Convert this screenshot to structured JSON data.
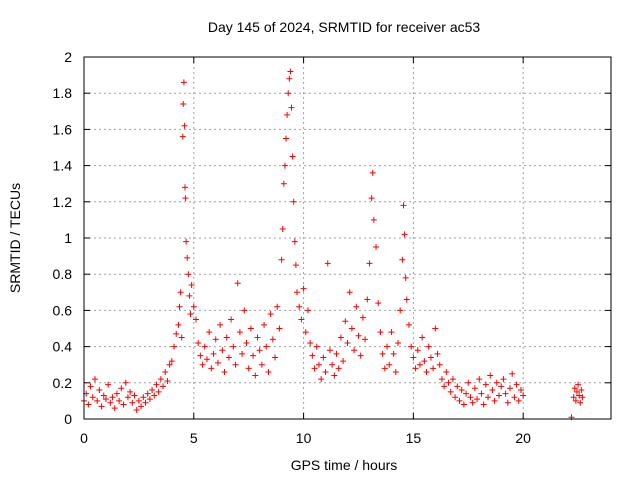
{
  "chart_data": {
    "type": "scatter",
    "title": "Day 145 of 2024, SRMTID for receiver ac53",
    "xlabel": "GPS time / hours",
    "ylabel": "SRMTID / TECUs",
    "xlim": [
      0,
      24
    ],
    "ylim": [
      0,
      2
    ],
    "xticks": [
      0,
      5,
      10,
      15,
      20
    ],
    "xtick_labels": [
      "0",
      "5",
      "10",
      "15",
      "20"
    ],
    "yticks": [
      0,
      0.2,
      0.4,
      0.6,
      0.8,
      1,
      1.2,
      1.4,
      1.6,
      1.8,
      2
    ],
    "ytick_labels": [
      "0",
      "0.2",
      "0.4",
      "0.6",
      "0.8",
      "1",
      "1.2",
      "1.4",
      "1.6",
      "1.8",
      "2"
    ],
    "grid": true,
    "marker": "+",
    "color": "#ff0000",
    "series": [
      {
        "name": "SRMTID",
        "points": [
          [
            0.0,
            0.1
          ],
          [
            0.1,
            0.14
          ],
          [
            0.2,
            0.08
          ],
          [
            0.3,
            0.18
          ],
          [
            0.4,
            0.12
          ],
          [
            0.5,
            0.22
          ],
          [
            0.6,
            0.1
          ],
          [
            0.7,
            0.16
          ],
          [
            0.8,
            0.07
          ],
          [
            0.9,
            0.13
          ],
          [
            1.0,
            0.11
          ],
          [
            1.1,
            0.19
          ],
          [
            1.2,
            0.09
          ],
          [
            1.3,
            0.12
          ],
          [
            1.4,
            0.06
          ],
          [
            1.5,
            0.14
          ],
          [
            1.6,
            0.1
          ],
          [
            1.7,
            0.17
          ],
          [
            1.8,
            0.08
          ],
          [
            1.9,
            0.2
          ],
          [
            2.0,
            0.12
          ],
          [
            2.1,
            0.15
          ],
          [
            2.2,
            0.09
          ],
          [
            2.3,
            0.13
          ],
          [
            2.4,
            0.05
          ],
          [
            2.5,
            0.1
          ],
          [
            2.6,
            0.07
          ],
          [
            2.7,
            0.12
          ],
          [
            2.8,
            0.09
          ],
          [
            2.9,
            0.14
          ],
          [
            3.0,
            0.11
          ],
          [
            3.1,
            0.16
          ],
          [
            3.2,
            0.13
          ],
          [
            3.3,
            0.19
          ],
          [
            3.4,
            0.15
          ],
          [
            3.5,
            0.22
          ],
          [
            3.6,
            0.18
          ],
          [
            3.7,
            0.26
          ],
          [
            3.8,
            0.21
          ],
          [
            3.9,
            0.3
          ],
          [
            4.0,
            0.32
          ],
          [
            4.1,
            0.4
          ],
          [
            4.2,
            0.47
          ],
          [
            4.3,
            0.52
          ],
          [
            4.35,
            0.62
          ],
          [
            4.4,
            0.7
          ],
          [
            4.45,
            0.45
          ],
          [
            4.5,
            1.56
          ],
          [
            4.52,
            1.74
          ],
          [
            4.55,
            1.86
          ],
          [
            4.58,
            1.62
          ],
          [
            4.6,
            1.28
          ],
          [
            4.62,
            1.22
          ],
          [
            4.65,
            0.98
          ],
          [
            4.7,
            0.89
          ],
          [
            4.75,
            0.8
          ],
          [
            4.8,
            0.68
          ],
          [
            4.85,
            0.58
          ],
          [
            4.9,
            0.74
          ],
          [
            5.0,
            0.62
          ],
          [
            5.1,
            0.55
          ],
          [
            5.2,
            0.42
          ],
          [
            5.3,
            0.35
          ],
          [
            5.4,
            0.3
          ],
          [
            5.5,
            0.4
          ],
          [
            5.6,
            0.33
          ],
          [
            5.7,
            0.48
          ],
          [
            5.8,
            0.28
          ],
          [
            5.9,
            0.36
          ],
          [
            6.0,
            0.44
          ],
          [
            6.1,
            0.31
          ],
          [
            6.2,
            0.52
          ],
          [
            6.3,
            0.38
          ],
          [
            6.4,
            0.26
          ],
          [
            6.5,
            0.45
          ],
          [
            6.6,
            0.34
          ],
          [
            6.7,
            0.55
          ],
          [
            6.8,
            0.4
          ],
          [
            6.9,
            0.3
          ],
          [
            7.0,
            0.75
          ],
          [
            7.1,
            0.48
          ],
          [
            7.2,
            0.36
          ],
          [
            7.3,
            0.6
          ],
          [
            7.4,
            0.42
          ],
          [
            7.5,
            0.28
          ],
          [
            7.6,
            0.5
          ],
          [
            7.7,
            0.35
          ],
          [
            7.8,
            0.24
          ],
          [
            7.9,
            0.45
          ],
          [
            8.0,
            0.38
          ],
          [
            8.1,
            0.3
          ],
          [
            8.2,
            0.52
          ],
          [
            8.3,
            0.4
          ],
          [
            8.4,
            0.26
          ],
          [
            8.5,
            0.58
          ],
          [
            8.6,
            0.44
          ],
          [
            8.7,
            0.34
          ],
          [
            8.8,
            0.62
          ],
          [
            8.9,
            0.5
          ],
          [
            9.0,
            0.88
          ],
          [
            9.05,
            1.05
          ],
          [
            9.1,
            1.3
          ],
          [
            9.15,
            1.4
          ],
          [
            9.2,
            1.55
          ],
          [
            9.25,
            1.68
          ],
          [
            9.3,
            1.8
          ],
          [
            9.35,
            1.88
          ],
          [
            9.4,
            1.92
          ],
          [
            9.45,
            1.72
          ],
          [
            9.5,
            1.45
          ],
          [
            9.55,
            1.2
          ],
          [
            9.6,
            0.98
          ],
          [
            9.65,
            0.85
          ],
          [
            9.7,
            0.7
          ],
          [
            9.8,
            0.62
          ],
          [
            9.9,
            0.55
          ],
          [
            10.0,
            0.72
          ],
          [
            10.1,
            0.48
          ],
          [
            10.2,
            0.6
          ],
          [
            10.3,
            0.42
          ],
          [
            10.4,
            0.35
          ],
          [
            10.5,
            0.28
          ],
          [
            10.6,
            0.4
          ],
          [
            10.7,
            0.3
          ],
          [
            10.8,
            0.22
          ],
          [
            10.9,
            0.34
          ],
          [
            11.0,
            0.26
          ],
          [
            11.1,
            0.86
          ],
          [
            11.2,
            0.38
          ],
          [
            11.3,
            0.3
          ],
          [
            11.4,
            0.24
          ],
          [
            11.5,
            0.36
          ],
          [
            11.6,
            0.28
          ],
          [
            11.7,
            0.45
          ],
          [
            11.8,
            0.32
          ],
          [
            11.9,
            0.54
          ],
          [
            12.0,
            0.42
          ],
          [
            12.1,
            0.7
          ],
          [
            12.2,
            0.5
          ],
          [
            12.3,
            0.38
          ],
          [
            12.4,
            0.62
          ],
          [
            12.5,
            0.46
          ],
          [
            12.6,
            0.35
          ],
          [
            12.7,
            0.56
          ],
          [
            12.8,
            0.44
          ],
          [
            12.9,
            0.66
          ],
          [
            13.0,
            0.86
          ],
          [
            13.1,
            1.22
          ],
          [
            13.15,
            1.36
          ],
          [
            13.2,
            1.1
          ],
          [
            13.3,
            0.95
          ],
          [
            13.4,
            0.64
          ],
          [
            13.5,
            0.48
          ],
          [
            13.6,
            0.36
          ],
          [
            13.7,
            0.28
          ],
          [
            13.8,
            0.4
          ],
          [
            13.9,
            0.3
          ],
          [
            14.0,
            0.48
          ],
          [
            14.1,
            0.36
          ],
          [
            14.2,
            0.26
          ],
          [
            14.3,
            0.42
          ],
          [
            14.4,
            0.6
          ],
          [
            14.5,
            0.88
          ],
          [
            14.55,
            1.18
          ],
          [
            14.6,
            1.02
          ],
          [
            14.65,
            0.78
          ],
          [
            14.7,
            0.66
          ],
          [
            14.8,
            0.52
          ],
          [
            14.9,
            0.4
          ],
          [
            15.0,
            0.34
          ],
          [
            15.1,
            0.28
          ],
          [
            15.2,
            0.38
          ],
          [
            15.3,
            0.3
          ],
          [
            15.4,
            0.45
          ],
          [
            15.5,
            0.32
          ],
          [
            15.6,
            0.26
          ],
          [
            15.7,
            0.4
          ],
          [
            15.8,
            0.34
          ],
          [
            15.9,
            0.28
          ],
          [
            16.0,
            0.5
          ],
          [
            16.1,
            0.36
          ],
          [
            16.2,
            0.3
          ],
          [
            16.3,
            0.22
          ],
          [
            16.4,
            0.18
          ],
          [
            16.5,
            0.26
          ],
          [
            16.6,
            0.2
          ],
          [
            16.7,
            0.15
          ],
          [
            16.8,
            0.22
          ],
          [
            16.9,
            0.12
          ],
          [
            17.0,
            0.18
          ],
          [
            17.1,
            0.1
          ],
          [
            17.2,
            0.16
          ],
          [
            17.3,
            0.08
          ],
          [
            17.4,
            0.14
          ],
          [
            17.5,
            0.2
          ],
          [
            17.6,
            0.12
          ],
          [
            17.7,
            0.09
          ],
          [
            17.8,
            0.17
          ],
          [
            17.9,
            0.11
          ],
          [
            18.0,
            0.22
          ],
          [
            18.1,
            0.14
          ],
          [
            18.2,
            0.08
          ],
          [
            18.3,
            0.19
          ],
          [
            18.4,
            0.12
          ],
          [
            18.5,
            0.24
          ],
          [
            18.6,
            0.16
          ],
          [
            18.7,
            0.1
          ],
          [
            18.8,
            0.2
          ],
          [
            18.9,
            0.13
          ],
          [
            19.0,
            0.18
          ],
          [
            19.1,
            0.22
          ],
          [
            19.2,
            0.14
          ],
          [
            19.3,
            0.09
          ],
          [
            19.4,
            0.17
          ],
          [
            19.5,
            0.25
          ],
          [
            19.6,
            0.12
          ],
          [
            19.7,
            0.19
          ],
          [
            19.8,
            0.1
          ],
          [
            19.9,
            0.16
          ],
          [
            20.0,
            0.13
          ],
          [
            22.2,
            0.01
          ],
          [
            22.3,
            0.12
          ],
          [
            22.35,
            0.17
          ],
          [
            22.4,
            0.1
          ],
          [
            22.45,
            0.15
          ],
          [
            22.5,
            0.19
          ],
          [
            22.55,
            0.13
          ],
          [
            22.6,
            0.09
          ],
          [
            22.65,
            0.16
          ],
          [
            22.7,
            0.12
          ]
        ]
      }
    ]
  }
}
